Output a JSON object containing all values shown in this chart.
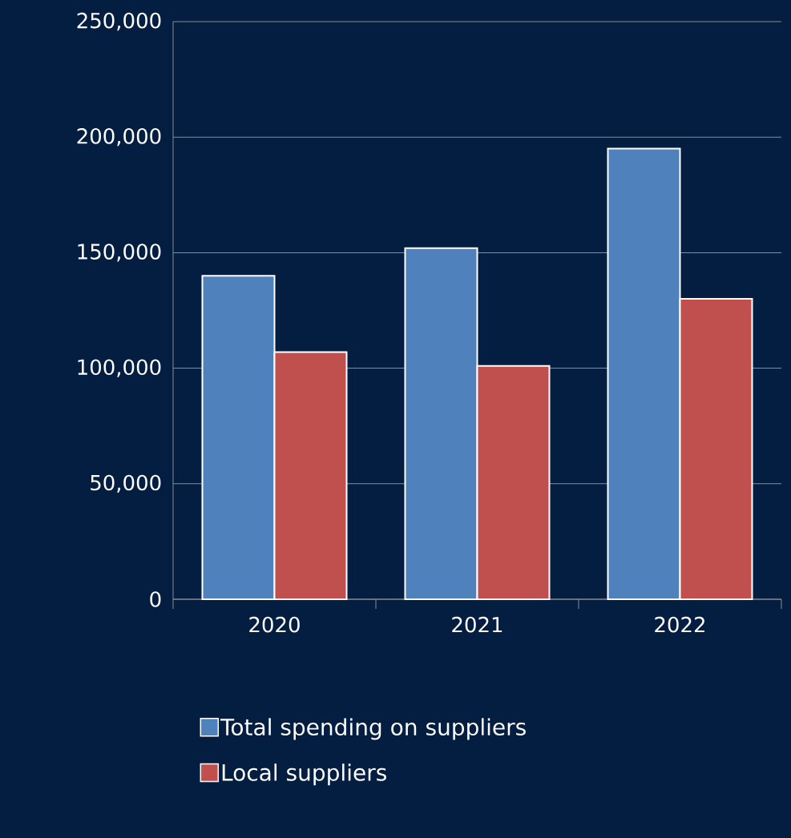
{
  "chart_data": {
    "type": "bar",
    "categories": [
      "2020",
      "2021",
      "2022"
    ],
    "series": [
      {
        "name": "Total spending on suppliers",
        "color": "#4f81bd",
        "values": [
          140000,
          152000,
          195000
        ]
      },
      {
        "name": "Local suppliers",
        "color": "#c0504d",
        "values": [
          107000,
          101000,
          130000
        ]
      }
    ],
    "ylim": [
      0,
      250000
    ],
    "yticks": [
      {
        "value": 0,
        "label": "0"
      },
      {
        "value": 50000,
        "label": "50,000"
      },
      {
        "value": 100000,
        "label": "100,000"
      },
      {
        "value": 150000,
        "label": "150,000"
      },
      {
        "value": 200000,
        "label": "200,000"
      },
      {
        "value": 250000,
        "label": "250,000"
      }
    ],
    "grid": "y",
    "legend": "bottom"
  }
}
